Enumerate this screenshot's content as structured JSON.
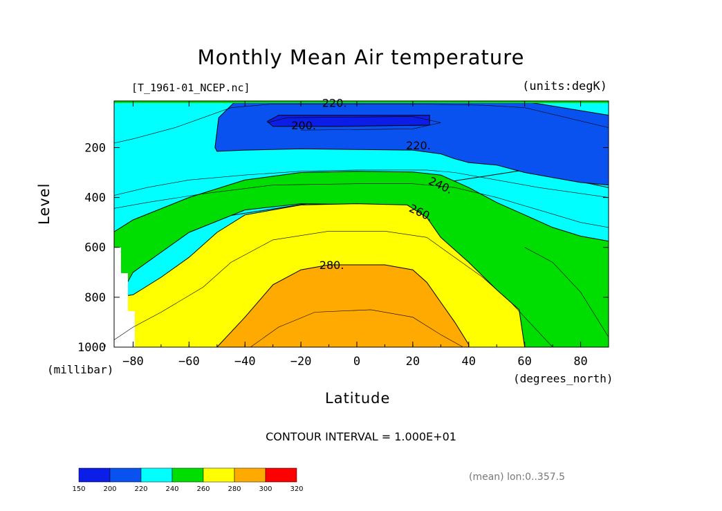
{
  "chart_data": {
    "type": "contour",
    "title": "Monthly Mean Air temperature",
    "source_label": "[T_1961-01_NCEP.nc]",
    "units_label": "(units:degK)",
    "xlabel": "Latitude",
    "ylabel": "Level",
    "x_units": "(degrees_north)",
    "y_units": "(millibar)",
    "xlim": [
      -90,
      90
    ],
    "ylim": [
      1000,
      10
    ],
    "x_ticks": [
      "−80",
      "−60",
      "−40",
      "−20",
      "0",
      "20",
      "40",
      "60",
      "80"
    ],
    "x_tick_values": [
      -80,
      -60,
      -40,
      -20,
      0,
      20,
      40,
      60,
      80
    ],
    "y_ticks": [
      "200",
      "400",
      "600",
      "800",
      "1000"
    ],
    "y_tick_values": [
      200,
      400,
      600,
      800,
      1000
    ],
    "contour_interval_text": "CONTOUR INTERVAL = 1.000E+01",
    "averaging_note": "(mean) lon:0..357.5",
    "contour_labels": [
      {
        "text": "220.",
        "lat": -8,
        "level": 20
      },
      {
        "text": "200.",
        "lat": -19,
        "level": 110
      },
      {
        "text": "220.",
        "lat": 22,
        "level": 190
      },
      {
        "text": "240.",
        "lat": 30,
        "level": 350
      },
      {
        "text": "260.",
        "lat": 23,
        "level": 460
      },
      {
        "text": "280.",
        "lat": -9,
        "level": 670
      }
    ],
    "bands": [
      {
        "range": "200-220",
        "color": "#0a52f0",
        "polygon": [
          [
            -50.7,
            200
          ],
          [
            -49.4,
            80
          ],
          [
            -43.5,
            15
          ],
          [
            60,
            15
          ],
          [
            90,
            70
          ],
          [
            90,
            350
          ],
          [
            80,
            340
          ],
          [
            70,
            320
          ],
          [
            60,
            300
          ],
          [
            50,
            270
          ],
          [
            40,
            260
          ],
          [
            35,
            245
          ],
          [
            30,
            225
          ],
          [
            20,
            210
          ],
          [
            -20,
            205
          ],
          [
            -40,
            210
          ],
          [
            -50,
            215
          ]
        ]
      },
      {
        "range": "<200",
        "color": "#0a1ee8",
        "polygon": [
          [
            -32,
            95
          ],
          [
            -28,
            70
          ],
          [
            22,
            70
          ],
          [
            26,
            70
          ],
          [
            26,
            110
          ],
          [
            -8,
            115
          ],
          [
            -30,
            115
          ]
        ]
      },
      {
        "range": "220-240",
        "color": "#00ffff",
        "polygon": [
          [
            -90,
            10
          ],
          [
            90,
            10
          ],
          [
            90,
            360
          ],
          [
            60,
            290
          ],
          [
            -90,
            550
          ]
        ]
      },
      {
        "range": "240-260",
        "color": "#00dd00",
        "polygon": [
          [
            -90,
            560
          ],
          [
            -80,
            490
          ],
          [
            -60,
            400
          ],
          [
            -40,
            330
          ],
          [
            -20,
            300
          ],
          [
            0,
            295
          ],
          [
            20,
            298
          ],
          [
            30,
            310
          ],
          [
            40,
            360
          ],
          [
            50,
            420
          ],
          [
            60,
            470
          ],
          [
            70,
            520
          ],
          [
            80,
            555
          ],
          [
            90,
            575
          ],
          [
            90,
            1000
          ],
          [
            60,
            1000
          ],
          [
            58,
            870
          ],
          [
            50,
            800
          ],
          [
            40,
            720
          ],
          [
            30,
            640
          ],
          [
            25,
            560
          ],
          [
            20,
            480
          ],
          [
            10,
            430
          ],
          [
            -20,
            425
          ],
          [
            -40,
            450
          ],
          [
            -60,
            540
          ],
          [
            -70,
            620
          ],
          [
            -80,
            700
          ],
          [
            -85,
            800
          ],
          [
            -88,
            1000
          ],
          [
            -90,
            1000
          ]
        ]
      },
      {
        "range": "260-280",
        "color": "#ffff00",
        "polygon": [
          [
            -86,
            800
          ],
          [
            -80,
            790
          ],
          [
            -70,
            720
          ],
          [
            -60,
            640
          ],
          [
            -50,
            540
          ],
          [
            -40,
            470
          ],
          [
            -20,
            430
          ],
          [
            0,
            425
          ],
          [
            18,
            430
          ],
          [
            25,
            480
          ],
          [
            30,
            560
          ],
          [
            40,
            660
          ],
          [
            50,
            770
          ],
          [
            58,
            850
          ],
          [
            60,
            1000
          ],
          [
            -87,
            1000
          ]
        ]
      },
      {
        "range": "280-300",
        "color": "#ffaa00",
        "polygon": [
          [
            -50,
            1000
          ],
          [
            -40,
            880
          ],
          [
            -30,
            750
          ],
          [
            -20,
            690
          ],
          [
            -10,
            670
          ],
          [
            10,
            670
          ],
          [
            20,
            690
          ],
          [
            25,
            740
          ],
          [
            30,
            820
          ],
          [
            35,
            900
          ],
          [
            40,
            990
          ],
          [
            40,
            1000
          ]
        ]
      }
    ],
    "colorbar": {
      "boundaries": [
        "150",
        "200",
        "220",
        "240",
        "260",
        "280",
        "300",
        "320"
      ],
      "colors": [
        "#0a1ee8",
        "#0a52f0",
        "#00ffff",
        "#00dd00",
        "#ffff00",
        "#ffaa00",
        "#ff0000"
      ]
    }
  }
}
